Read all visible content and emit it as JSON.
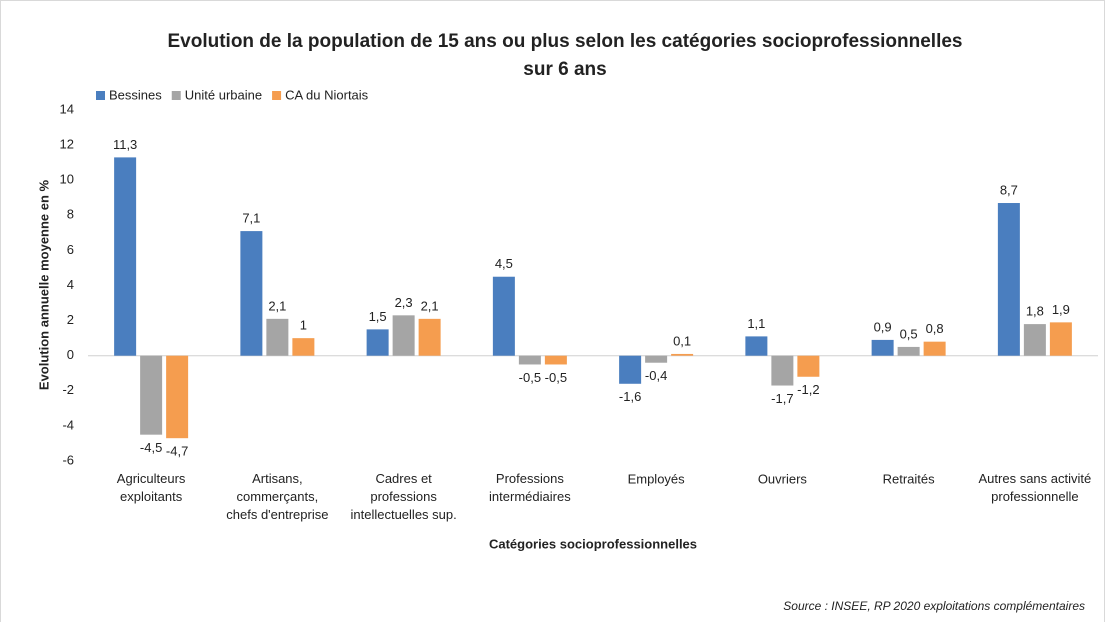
{
  "chart_data": {
    "type": "bar",
    "title": "Evolution de la population de 15 ans ou plus selon les catégories socioprofessionnelles\nsur 6 ans",
    "xlabel": "Catégories socioprofessionnelles",
    "ylabel": "Evolution annuelle moyenne en %",
    "source": "Source : INSEE, RP 2020 exploitations complémentaires",
    "categories": [
      "Agriculteurs\nexploitants",
      "Artisans,\ncommerçants,\nchefs d'entreprise",
      "Cadres et\nprofessions\nintellectuelles sup.",
      "Professions\nintermédiaires",
      "Employés",
      "Ouvriers",
      "Retraités",
      "Autres sans activité\nprofessionnelle"
    ],
    "series": [
      {
        "name": "Bessines",
        "color": "#4a7ebf",
        "values": [
          11.3,
          7.1,
          1.5,
          4.5,
          -1.6,
          1.1,
          0.9,
          8.7
        ],
        "value_labels": [
          "11,3",
          "7,1",
          "1,5",
          "4,5",
          "-1,6",
          "1,1",
          "0,9",
          "8,7"
        ]
      },
      {
        "name": "Unité urbaine",
        "color": "#a5a5a5",
        "values": [
          -4.5,
          2.1,
          2.3,
          -0.5,
          -0.4,
          -1.7,
          0.5,
          1.8
        ],
        "value_labels": [
          "-4,5",
          "2,1",
          "2,3",
          "-0,5",
          "-0,4",
          "-1,7",
          "0,5",
          "1,8"
        ]
      },
      {
        "name": "CA du Niortais",
        "color": "#f59d4f",
        "values": [
          -4.7,
          1,
          2.1,
          -0.5,
          0.1,
          -1.2,
          0.8,
          1.9
        ],
        "value_labels": [
          "-4,7",
          "1",
          "2,1",
          "-0,5",
          "0,1",
          "-1,2",
          "0,8",
          "1,9"
        ]
      }
    ],
    "ylim": [
      -6,
      14
    ],
    "yticks": [
      -6,
      -4,
      -2,
      0,
      2,
      4,
      6,
      8,
      10,
      12,
      14
    ],
    "grid": false,
    "legend": "top-left"
  }
}
